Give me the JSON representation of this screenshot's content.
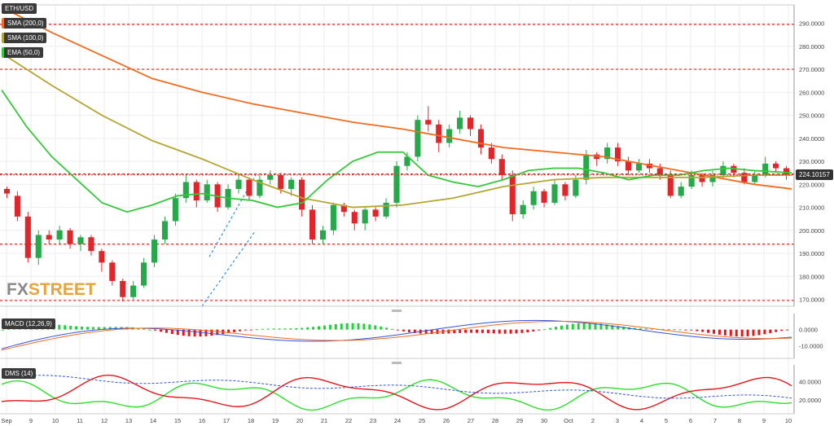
{
  "chart_data": [
    {
      "type": "candlestick",
      "legend": {
        "symbol": "ETH/USD",
        "indicators": [
          "SMA (200,0)",
          "SMA (100,0)",
          "EMA (50,0)"
        ]
      },
      "watermark": {
        "part1": "FX",
        "part2": "STREET"
      },
      "y_ticks": [
        "290.0000",
        "280.0000",
        "270.0000",
        "260.0000",
        "250.0000",
        "240.0000",
        "230.0000",
        "220.0000",
        "210.0000",
        "200.0000",
        "190.0000",
        "180.0000",
        "170.0000"
      ],
      "ylim": [
        167,
        298
      ],
      "x_ticks": [
        "Sep",
        "9",
        "10",
        "11",
        "12",
        "13",
        "14",
        "15",
        "16",
        "17",
        "18",
        "19",
        "20",
        "21",
        "22",
        "23",
        "24",
        "25",
        "26",
        "27",
        "28",
        "29",
        "30",
        "Oct",
        "2",
        "3",
        "4",
        "5",
        "6",
        "7",
        "8",
        "9",
        "10"
      ],
      "last_price": "224.10157",
      "horizontal_levels": [
        289.5,
        270,
        224.5,
        194,
        169.5
      ],
      "trendlines": [
        {
          "from": [
            8.3,
            188.5
          ],
          "to": [
            10.2,
            224
          ]
        },
        {
          "from": [
            8.0,
            167
          ],
          "to": [
            10.2,
            200
          ]
        }
      ],
      "candles_hl": [
        [
          218,
          216,
          219,
          214
        ],
        [
          215,
          206,
          217,
          204
        ],
        [
          206,
          188,
          208,
          186
        ],
        [
          188,
          198,
          200,
          185
        ],
        [
          198,
          196,
          200,
          194
        ],
        [
          196,
          200,
          202,
          194
        ],
        [
          200,
          194,
          201,
          192
        ],
        [
          194,
          197,
          198,
          191
        ],
        [
          197,
          191,
          198,
          189
        ],
        [
          191,
          186,
          192,
          182
        ],
        [
          186,
          178,
          187,
          176
        ],
        [
          178,
          171,
          179,
          169
        ],
        [
          171,
          176,
          178,
          170
        ],
        [
          176,
          186,
          188,
          175
        ],
        [
          186,
          196,
          198,
          184
        ],
        [
          196,
          204,
          206,
          194
        ],
        [
          204,
          214,
          216,
          202
        ],
        [
          214,
          221,
          224,
          212
        ],
        [
          221,
          213,
          222,
          210
        ],
        [
          213,
          220,
          222,
          212
        ],
        [
          220,
          210,
          221,
          208
        ],
        [
          210,
          218,
          220,
          209
        ],
        [
          218,
          222,
          224,
          216
        ],
        [
          222,
          215,
          223,
          213
        ],
        [
          215,
          222,
          224,
          214
        ],
        [
          222,
          224,
          226,
          220
        ],
        [
          224,
          218,
          225,
          216
        ],
        [
          218,
          222,
          223,
          215
        ],
        [
          222,
          209,
          223,
          206
        ],
        [
          209,
          196,
          211,
          194
        ],
        [
          196,
          200,
          202,
          194
        ],
        [
          200,
          211,
          212,
          198
        ],
        [
          211,
          208,
          212,
          206
        ],
        [
          208,
          203,
          209,
          200
        ],
        [
          203,
          209,
          210,
          200
        ],
        [
          209,
          206,
          210,
          204
        ],
        [
          206,
          212,
          214,
          205
        ],
        [
          212,
          228,
          230,
          210
        ],
        [
          228,
          232,
          234,
          226
        ],
        [
          232,
          248,
          250,
          230
        ],
        [
          248,
          246,
          254,
          243
        ],
        [
          246,
          238,
          248,
          234
        ],
        [
          238,
          244,
          246,
          236
        ],
        [
          244,
          249,
          252,
          242
        ],
        [
          249,
          244,
          250,
          241
        ],
        [
          244,
          236,
          246,
          233
        ],
        [
          236,
          231,
          238,
          229
        ],
        [
          231,
          224,
          233,
          222
        ],
        [
          224,
          207,
          226,
          204
        ],
        [
          207,
          211,
          213,
          205
        ],
        [
          211,
          217,
          219,
          209
        ],
        [
          217,
          212,
          218,
          210
        ],
        [
          212,
          220,
          222,
          211
        ],
        [
          220,
          215,
          221,
          213
        ],
        [
          215,
          222,
          224,
          214
        ],
        [
          222,
          233,
          235,
          220
        ],
        [
          233,
          231,
          234,
          228
        ],
        [
          231,
          236,
          238,
          229
        ],
        [
          236,
          230,
          238,
          228
        ],
        [
          230,
          226,
          232,
          224
        ],
        [
          226,
          229,
          231,
          225
        ],
        [
          229,
          227,
          231,
          225
        ],
        [
          227,
          224,
          229,
          222
        ],
        [
          224,
          215,
          226,
          214
        ],
        [
          215,
          219,
          221,
          214
        ],
        [
          219,
          224,
          226,
          218
        ],
        [
          224,
          221,
          225,
          219
        ],
        [
          221,
          224,
          226,
          219
        ],
        [
          224,
          228,
          230,
          222
        ],
        [
          228,
          225,
          229,
          223
        ],
        [
          225,
          221,
          227,
          220
        ],
        [
          221,
          224,
          226,
          220
        ],
        [
          224,
          229,
          232,
          223
        ],
        [
          229,
          227,
          230,
          225
        ],
        [
          227,
          224,
          228,
          222
        ]
      ],
      "sma200": [
        [
          0,
          297
        ],
        [
          2,
          286
        ],
        [
          4,
          276
        ],
        [
          6,
          266
        ],
        [
          8,
          260
        ],
        [
          10,
          255
        ],
        [
          12,
          251
        ],
        [
          14,
          247
        ],
        [
          16,
          244
        ],
        [
          18,
          240
        ],
        [
          20,
          236
        ],
        [
          22,
          234
        ],
        [
          24,
          232
        ],
        [
          26,
          228
        ],
        [
          28,
          224
        ],
        [
          30,
          220
        ],
        [
          31.5,
          218
        ]
      ],
      "sma100": [
        [
          0,
          277
        ],
        [
          2,
          263
        ],
        [
          4,
          250
        ],
        [
          6,
          239
        ],
        [
          8,
          231
        ],
        [
          10,
          222
        ],
        [
          12,
          214
        ],
        [
          14,
          210
        ],
        [
          16,
          211
        ],
        [
          18,
          214
        ],
        [
          20,
          219
        ],
        [
          22,
          222
        ],
        [
          24,
          223
        ],
        [
          26,
          223
        ],
        [
          28,
          223
        ],
        [
          30,
          224
        ],
        [
          31.5,
          224
        ]
      ],
      "ema50": [
        [
          0,
          261
        ],
        [
          1,
          245
        ],
        [
          2,
          232
        ],
        [
          3,
          222
        ],
        [
          4,
          212
        ],
        [
          5,
          208
        ],
        [
          6,
          211
        ],
        [
          7,
          215
        ],
        [
          8,
          216
        ],
        [
          9,
          214
        ],
        [
          10,
          213
        ],
        [
          11,
          210
        ],
        [
          12,
          212
        ],
        [
          13,
          222
        ],
        [
          14,
          230
        ],
        [
          15,
          234
        ],
        [
          16,
          234
        ],
        [
          17,
          224
        ],
        [
          18,
          221
        ],
        [
          19,
          219
        ],
        [
          20,
          222
        ],
        [
          21,
          226
        ],
        [
          22,
          227
        ],
        [
          23,
          227
        ],
        [
          24,
          225
        ],
        [
          25,
          222
        ],
        [
          26,
          224
        ],
        [
          27,
          224
        ],
        [
          28,
          226
        ],
        [
          29,
          227
        ],
        [
          30,
          226
        ],
        [
          31.5,
          225
        ]
      ]
    },
    {
      "type": "histogram",
      "legend": "MACD (12,26,9)",
      "y_ticks": [
        "0.0000",
        "-10.0000"
      ],
      "ylim": [
        -18,
        10
      ]
    },
    {
      "type": "line",
      "legend": "DMS (14)",
      "y_ticks": [
        "40.0000",
        "20.0000"
      ],
      "ylim": [
        5,
        58
      ]
    }
  ]
}
